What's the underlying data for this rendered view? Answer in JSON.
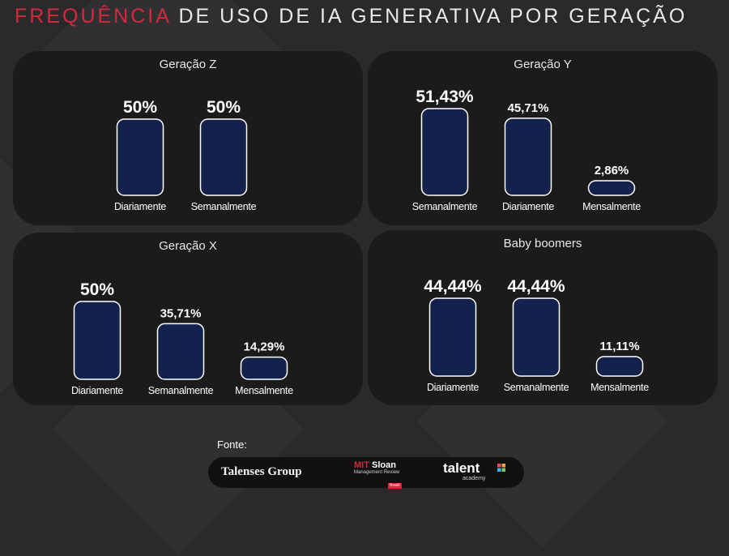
{
  "title": {
    "accent": "FREQUÊNCIA",
    "rest": " DE USO DE IA GENERATIVA POR GERAÇÃO"
  },
  "colors": {
    "bar_fill": "#13214d",
    "bar_stroke": "#ffffff",
    "panel": "#1b1b1c",
    "accent": "#d6283a"
  },
  "chart_data": [
    {
      "type": "bar",
      "title": "Geração Z",
      "categories": [
        "Diariamente",
        "Semanalmente"
      ],
      "values": [
        50,
        50
      ],
      "labels": [
        "50%",
        "50%"
      ]
    },
    {
      "type": "bar",
      "title": "Geração Y",
      "categories": [
        "Semanalmente",
        "Diariamente",
        "Mensalmente"
      ],
      "values": [
        51.43,
        45.71,
        2.86
      ],
      "labels": [
        "51,43%",
        "45,71%",
        "2,86%"
      ]
    },
    {
      "type": "bar",
      "title": "Geração X",
      "categories": [
        "Diariamente",
        "Semanalmente",
        "Mensalmente"
      ],
      "values": [
        50,
        35.71,
        14.29
      ],
      "labels": [
        "50%",
        "35,71%",
        "14,29%"
      ]
    },
    {
      "type": "bar",
      "title": "Baby boomers",
      "categories": [
        "Diariamente",
        "Semanalmente",
        "Mensalmente"
      ],
      "values": [
        44.44,
        44.44,
        11.11
      ],
      "labels": [
        "44,44%",
        "44,44%",
        "11,11%"
      ]
    }
  ],
  "footer": {
    "label": "Fonte:",
    "logo_talenses": "Talenses Group",
    "logo_mit_a": "MIT",
    "logo_mit_b": " Sloan",
    "logo_mit_sub": "Management Review",
    "logo_mit_country": "Brasil",
    "logo_talent": "talent",
    "logo_talent_sub": "academy"
  }
}
